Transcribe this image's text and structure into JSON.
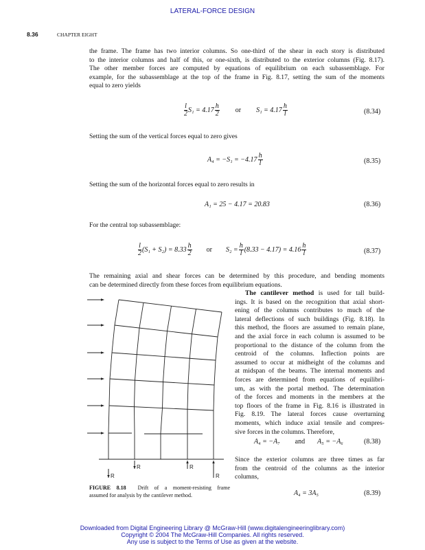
{
  "header": {
    "running_title": "LATERAL-FORCE DESIGN",
    "page_number": "8.36",
    "chapter": "CHAPTER EIGHT"
  },
  "para1": [
    "the frame. The frame has two interior columns. So one-third of the shear in each story is distributed",
    "to the interior columns and half of this, or one-sixth, is distributed to the exterior columns (Fig. 8.17).",
    "The other member forces are computed by equations of equilibrium on each subassemblage. For",
    "example, for the subassemblage at the top of the frame in Fig. 8.17, setting the sum of the moments",
    "equal to zero yields"
  ],
  "eq834": {
    "a_num": "l",
    "a_den": "2",
    "a_mid": "S₁ = 4.17",
    "b_num": "h",
    "b_den": "2",
    "or": "or",
    "c_mid": "S₁ = 4.17",
    "d_num": "h",
    "d_den": "l",
    "number": "(8.34)"
  },
  "para2": "Setting the sum of the vertical forces equal to zero gives",
  "eq835": {
    "lhs": "A₄ = −S₁ = −4.17",
    "num": "h",
    "den": "l",
    "number": "(8.35)"
  },
  "para3": "Setting the sum of the horizontal forces equal to zero results in",
  "eq836": {
    "text": "A₁ = 25 − 4.17 = 20.83",
    "number": "(8.36)"
  },
  "para4": "For the central top subassemblage:",
  "eq837": {
    "a_num": "l",
    "a_den": "2",
    "a_mid": "(S₁ + S₂) = 8.33",
    "b_num": "h",
    "b_den": "2",
    "or": "or",
    "c_mid": "S₂ =",
    "d_num": "h",
    "d_den": "l",
    "e_mid": "(8.33 − 4.17) = 4.16",
    "f_num": "h",
    "f_den": "l",
    "number": "(8.37)"
  },
  "para5": [
    "The remaining axial and shear forces can be determined by this procedure, and bending moments",
    "can be determined directly from these forces from equilibrium equations."
  ],
  "para6": {
    "bold_lead": "The cantilever method",
    "first_rest": " is used for tall build-",
    "lines": [
      "ings. It is based on the recognition that axial short-",
      "ening of the columns contributes to much of the",
      "lateral deflections of such buildings (Fig. 8.18). In",
      "this method, the floors are assumed to remain plane,",
      "and the axial force in each column is assumed to be",
      "proportional to the distance of the column from the",
      "centroid of the columns. Inflection points are",
      "assumed to occur at midheight of the columns and",
      "at midspan of the beams. The internal moments and",
      "forces are determined from equations of equilibri-",
      "um, as with the portal method. The determination",
      "of the forces and moments in the members at the",
      "top floors of the frame in Fig. 8.16 is illustrated in",
      "Fig. 8.19. The lateral forces cause overturning",
      "moments, which induce axial tensile and compres-",
      "sive forces in the columns. Therefore,"
    ]
  },
  "eq838": {
    "left": "A₄ = −A₇",
    "and": "and",
    "right": "A₅ = −A₆",
    "number": "(8.38)"
  },
  "para7": [
    "Since the exterior columns are three times as far",
    "from the centroid of the columns as the interior",
    "columns,"
  ],
  "eq839": {
    "text": "A₄ = 3A₅",
    "number": "(8.39)"
  },
  "figure": {
    "label": "FIGURE 8.18",
    "caption_line1": "Drift of a moment-resisting frame",
    "caption_line2": "assumed for analysis by the cantilever method.",
    "reaction_label": "R"
  },
  "footer": [
    "Downloaded from Digital Engineering Library @ McGraw-Hill (www.digitalengineeringlibrary.com)",
    "Copyright © 2004 The McGraw-Hill Companies. All rights reserved.",
    "Any use is subject to the Terms of Use as given at the website."
  ]
}
